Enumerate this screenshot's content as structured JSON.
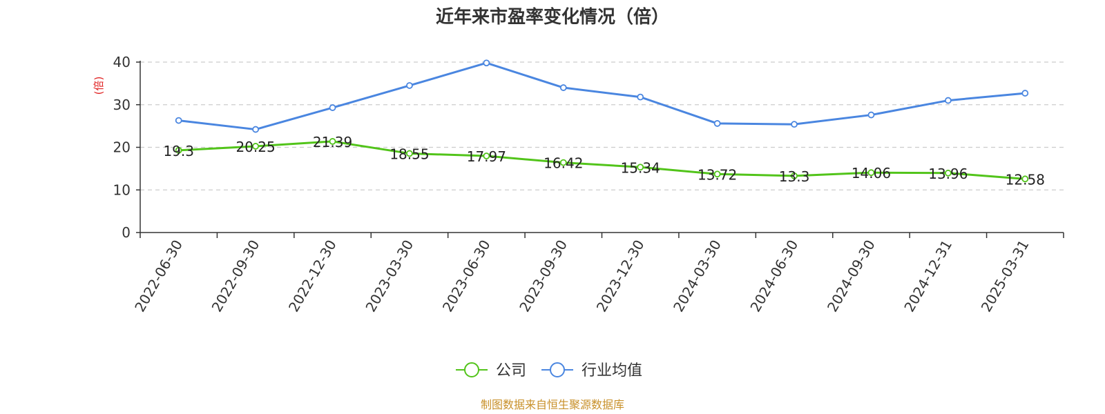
{
  "chart_data": {
    "type": "line",
    "title": "近年来市盈率变化情况（倍）",
    "ylabel": "(倍)",
    "xlabel": "",
    "ylim": [
      0,
      40
    ],
    "yticks": [
      0,
      10,
      20,
      30,
      40
    ],
    "grid": true,
    "legend_position": "bottom",
    "x": [
      "2022-06-30",
      "2022-09-30",
      "2022-12-30",
      "2023-03-30",
      "2023-06-30",
      "2023-09-30",
      "2023-12-30",
      "2024-03-30",
      "2024-06-30",
      "2024-09-30",
      "2024-12-31",
      "2025-03-31"
    ],
    "series": [
      {
        "name": "公司",
        "color": "#52c41a",
        "values": [
          19.3,
          20.25,
          21.39,
          18.55,
          17.97,
          16.42,
          15.34,
          13.72,
          13.3,
          14.06,
          13.96,
          12.58
        ],
        "value_labels": [
          "19.3",
          "20.25",
          "21.39",
          "18.55",
          "17.97",
          "16.42",
          "15.34",
          "13.72",
          "13.3",
          "14.06",
          "13.96",
          "12.58"
        ],
        "show_labels": true
      },
      {
        "name": "行业均值",
        "color": "#4a86e0",
        "values": [
          26.3,
          24.2,
          29.3,
          34.5,
          39.8,
          34.0,
          31.8,
          25.6,
          25.4,
          27.6,
          31.0,
          32.7
        ],
        "show_labels": false
      }
    ]
  },
  "footer": {
    "source": "制图数据来自恒生聚源数据库"
  }
}
